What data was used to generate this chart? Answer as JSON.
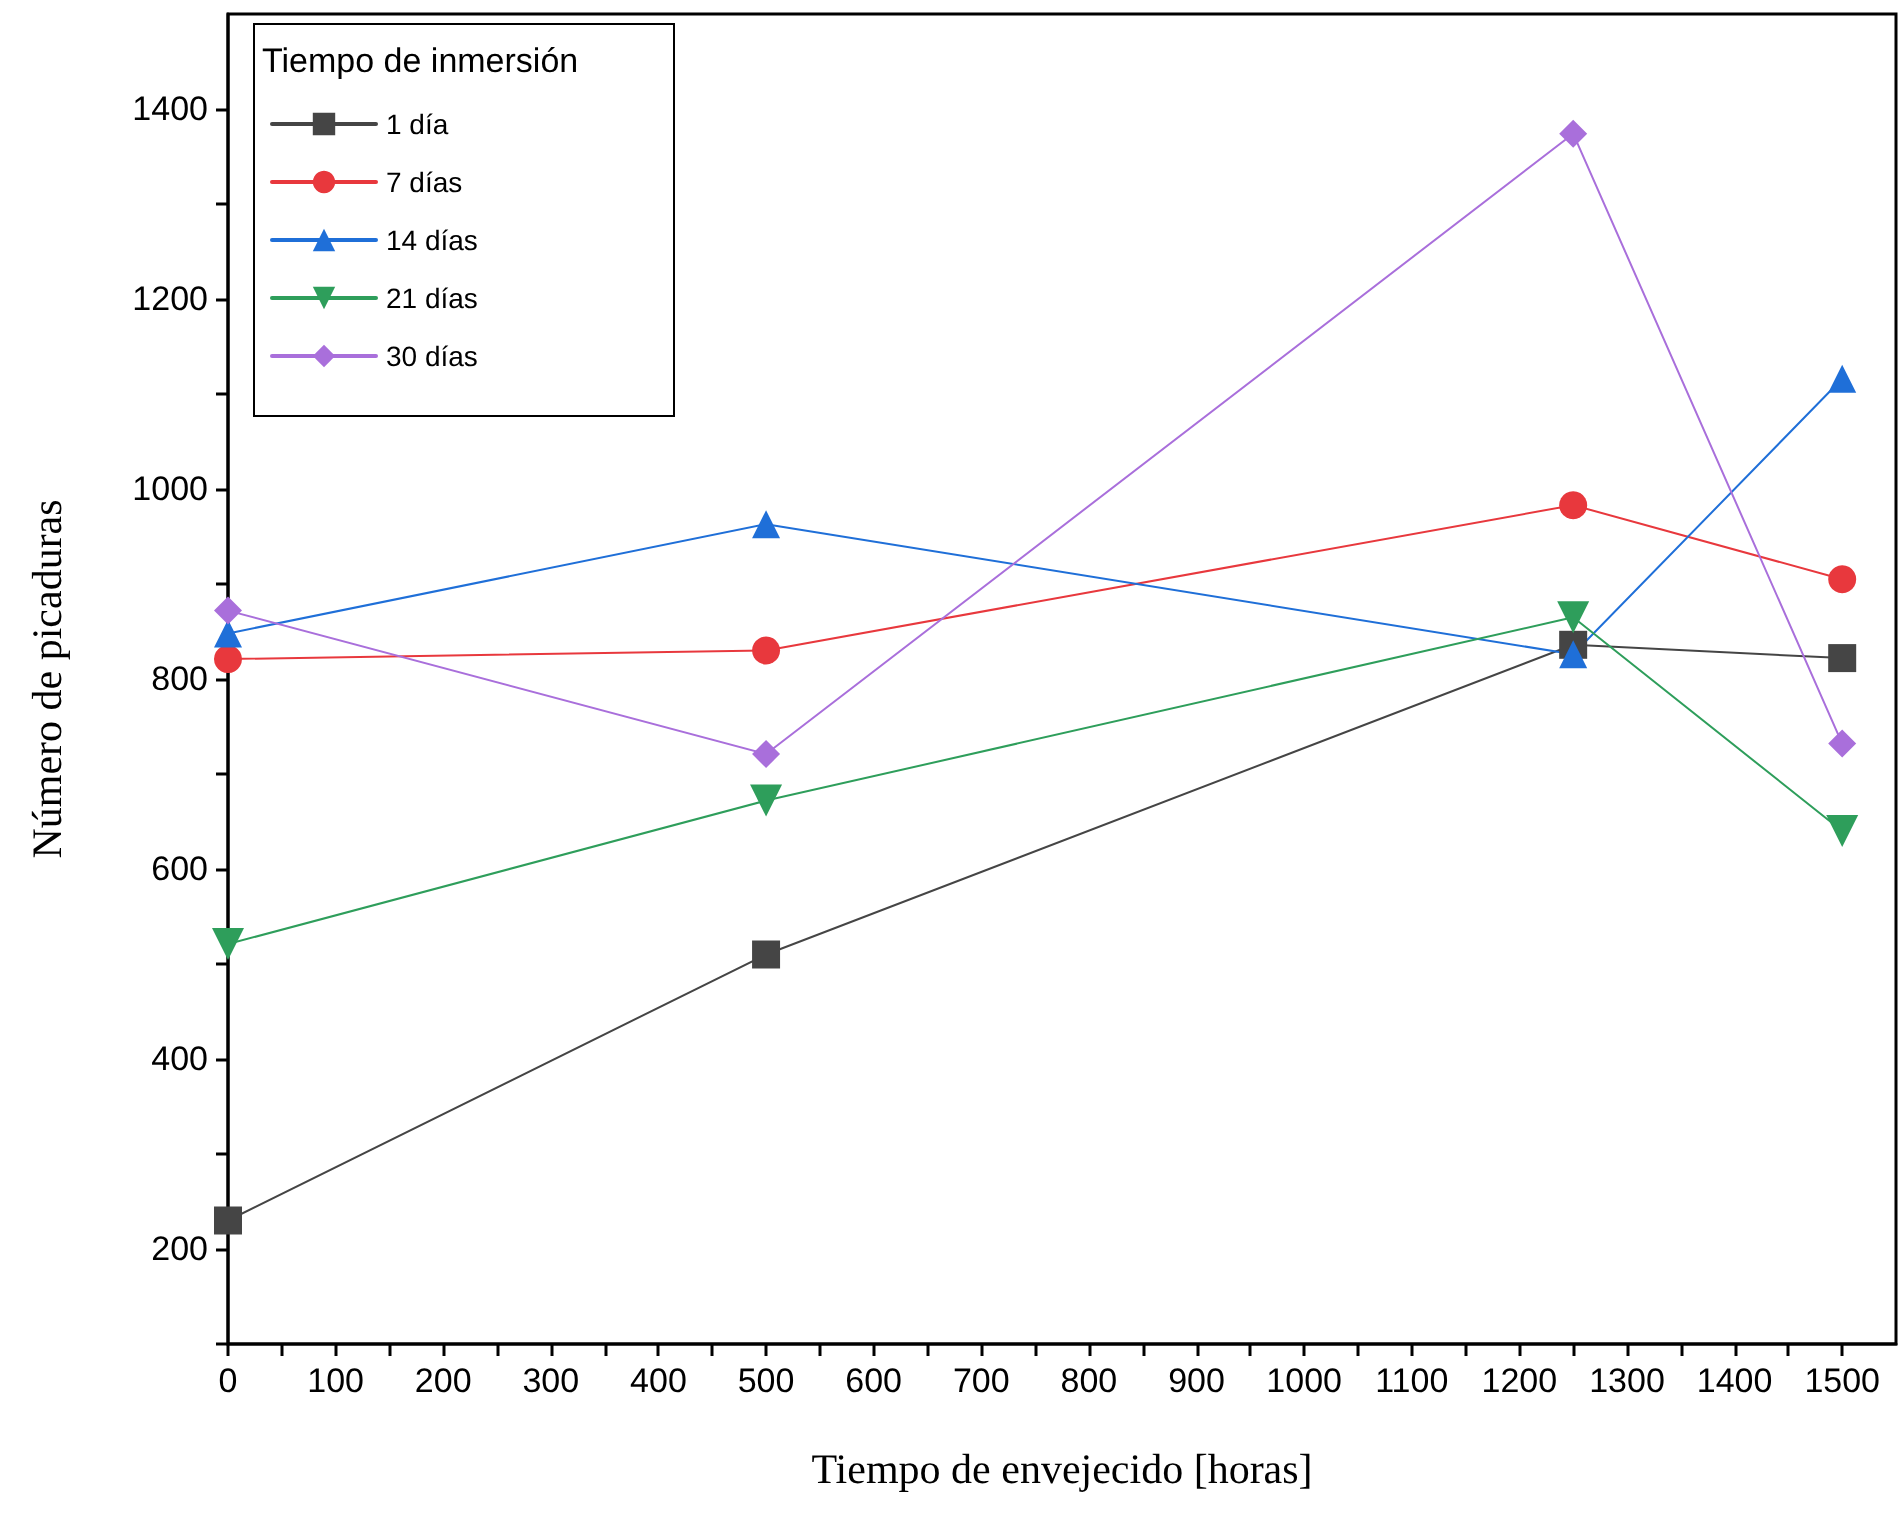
{
  "chart_data": {
    "type": "line",
    "xlabel": "Tiempo de envejecido [horas]",
    "ylabel": "Número de picaduras",
    "legend_title": "Tiempo de inmersión",
    "x": [
      0,
      500,
      1250,
      1500
    ],
    "series": [
      {
        "name": "1 día",
        "color": "#454545",
        "marker": "square",
        "values": [
          230,
          510,
          836,
          822
        ]
      },
      {
        "name": "7 días",
        "color": "#e8383d",
        "marker": "circle",
        "values": [
          821,
          830,
          983,
          905
        ]
      },
      {
        "name": "14 días",
        "color": "#1f6fd8",
        "marker": "triangle",
        "values": [
          848,
          963,
          826,
          1116
        ]
      },
      {
        "name": "21 días",
        "color": "#2e9e5b",
        "marker": "triangle-down",
        "values": [
          521,
          672,
          865,
          640
        ]
      },
      {
        "name": "30 días",
        "color": "#a96fdb",
        "marker": "diamond",
        "values": [
          872,
          721,
          1374,
          732
        ]
      }
    ],
    "xlim": [
      0,
      1550
    ],
    "ylim": [
      100,
      1500
    ],
    "xticks": [
      0,
      {
        "value": 50,
        "label": null
      },
      100,
      {
        "value": 150,
        "label": null
      },
      200,
      {
        "value": 250,
        "label": null
      },
      300,
      {
        "value": 350,
        "label": null
      },
      400,
      {
        "value": 450,
        "label": null
      },
      500,
      {
        "value": 550,
        "label": null
      },
      600,
      {
        "value": 650,
        "label": null
      },
      700,
      {
        "value": 750,
        "label": null
      },
      800,
      {
        "value": 850,
        "label": null
      },
      900,
      {
        "value": 950,
        "label": null
      },
      1000,
      {
        "value": 1050,
        "label": null
      },
      1100,
      {
        "value": 1150,
        "label": null
      },
      1200,
      {
        "value": 1250,
        "label": null
      },
      1300,
      {
        "value": 1350,
        "label": null
      },
      1400,
      {
        "value": 1450,
        "label": null
      },
      1500
    ],
    "yticks": [
      {
        "value": 100,
        "label": null
      },
      200,
      {
        "value": 300,
        "label": null
      },
      400,
      {
        "value": 500,
        "label": null
      },
      600,
      {
        "value": 700,
        "label": null
      },
      800,
      {
        "value": 900,
        "label": null
      },
      1000,
      {
        "value": 1100,
        "label": null
      },
      1200,
      {
        "value": 1300,
        "label": null
      },
      1400
    ],
    "grid": false,
    "legend": "top left",
    "line_style": "solid"
  }
}
